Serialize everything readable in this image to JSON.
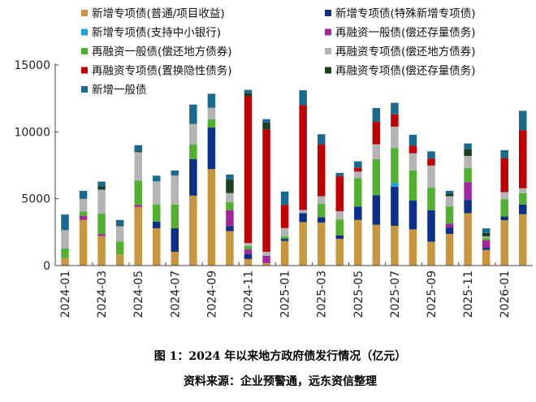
{
  "caption": {
    "title": "图 1：2024 年以来地方政府债发行情况（亿元）",
    "source": "资料来源：企业预警通，远东资信整理"
  },
  "chart_data": {
    "type": "bar",
    "stacked": true,
    "ylim": [
      0,
      15000
    ],
    "yticks": [
      "0",
      "5000",
      "10000",
      "15000"
    ],
    "legend_position": "top",
    "grid": false,
    "categories": [
      "2024-01",
      "2024-02",
      "2024-03",
      "2024-04",
      "2024-05",
      "2024-06",
      "2024-07",
      "2024-08",
      "2024-09",
      "2024-10",
      "2024-11",
      "2024-12",
      "2025-01",
      "2025-02",
      "2025-03",
      "2025-04",
      "2025-05",
      "2025-06",
      "2025-07",
      "2025-08",
      "2025-09",
      "2025-10",
      "2025-11",
      "2025-12",
      "2026-01",
      "2026-02"
    ],
    "xtick_labels": [
      "2024-01",
      "2024-03",
      "2024-05",
      "2024-07",
      "2024-09",
      "2024-11",
      "2025-01",
      "2025-03",
      "2025-05",
      "2025-07",
      "2025-09",
      "2025-11",
      "2026-01"
    ],
    "series": [
      {
        "name": "新增专项债(普通/项目收益)",
        "color": "#c8963e",
        "values": [
          550,
          3410,
          2200,
          830,
          4380,
          2790,
          1030,
          5230,
          7210,
          2570,
          490,
          180,
          1840,
          3250,
          3210,
          2000,
          3410,
          3050,
          2970,
          2710,
          1780,
          2360,
          3920,
          1170,
          3390,
          3840
        ]
      },
      {
        "name": "新增专项债(特殊新增专项债)",
        "color": "#0d2f8a",
        "values": [
          0,
          0,
          0,
          0,
          0,
          500,
          1760,
          2730,
          3110,
          380,
          360,
          0,
          160,
          670,
          400,
          260,
          1010,
          2200,
          2930,
          2160,
          2360,
          490,
          990,
          160,
          280,
          730
        ]
      },
      {
        "name": "新增专项债(支持中小银行)",
        "color": "#1ea0e0",
        "values": [
          0,
          0,
          0,
          0,
          0,
          0,
          0,
          0,
          0,
          0,
          0,
          0,
          0,
          0,
          0,
          0,
          0,
          0,
          280,
          0,
          0,
          0,
          0,
          0,
          0,
          0
        ]
      },
      {
        "name": "再融资一般债(偿还存量债务)",
        "color": "#a0289a",
        "values": [
          0,
          300,
          140,
          0,
          160,
          0,
          0,
          0,
          0,
          1190,
          360,
          550,
          0,
          0,
          0,
          0,
          0,
          0,
          0,
          0,
          0,
          300,
          1330,
          570,
          0,
          0
        ]
      },
      {
        "name": "再融资一般债(偿还地方债券)",
        "color": "#52b030",
        "values": [
          730,
          340,
          1540,
          970,
          1820,
          1290,
          1780,
          1110,
          610,
          610,
          260,
          0,
          180,
          0,
          1010,
          1170,
          2120,
          2710,
          2610,
          2240,
          1700,
          1270,
          1050,
          160,
          1290,
          850
        ]
      },
      {
        "name": "再融资专项债(偿还地方债券)",
        "color": "#b4b4b4",
        "values": [
          1370,
          950,
          1800,
          1150,
          2120,
          1720,
          2160,
          1520,
          870,
          670,
          220,
          300,
          630,
          240,
          570,
          630,
          490,
          1110,
          1600,
          1290,
          1640,
          770,
          910,
          120,
          530,
          360
        ]
      },
      {
        "name": "再融资专项债(置换隐性债务)",
        "color": "#c00000",
        "values": [
          0,
          0,
          0,
          0,
          0,
          0,
          0,
          0,
          0,
          0,
          10970,
          9150,
          1720,
          7840,
          3880,
          2630,
          280,
          1680,
          910,
          570,
          530,
          0,
          0,
          0,
          2550,
          4340
        ]
      },
      {
        "name": "再融资专项债(偿还存量债务)",
        "color": "#1a4020",
        "values": [
          0,
          40,
          260,
          60,
          80,
          0,
          0,
          0,
          0,
          1030,
          240,
          510,
          0,
          0,
          0,
          0,
          0,
          0,
          0,
          0,
          0,
          180,
          530,
          260,
          0,
          0
        ]
      },
      {
        "name": "新增一般债",
        "color": "#1a6a90",
        "values": [
          1170,
          550,
          340,
          400,
          440,
          420,
          380,
          1450,
          1050,
          360,
          240,
          260,
          1010,
          1110,
          750,
          240,
          490,
          1030,
          870,
          810,
          530,
          220,
          400,
          340,
          590,
          1450
        ]
      }
    ]
  }
}
